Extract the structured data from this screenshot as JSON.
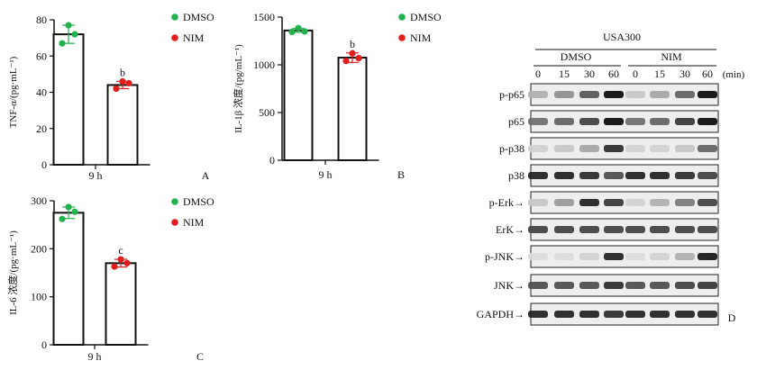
{
  "colors": {
    "dmso": "#22b14c",
    "nim": "#e11d1d",
    "axis": "#111111",
    "bar_fill": "#ffffff"
  },
  "chart_data": [
    {
      "panel": "A",
      "type": "bar",
      "ylabel": "TNF-α/(pg·mL⁻¹)",
      "xlabel": "9 h",
      "ylim": [
        0,
        80
      ],
      "yticks": [
        0,
        20,
        40,
        60,
        80
      ],
      "legend": [
        "DMSO",
        "NIM"
      ],
      "series": [
        {
          "name": "DMSO",
          "value": 72,
          "error": 5,
          "points": [
            77,
            67,
            72
          ]
        },
        {
          "name": "NIM",
          "value": 44,
          "error": 2,
          "points": [
            46,
            42,
            45
          ],
          "sig": "b"
        }
      ]
    },
    {
      "panel": "B",
      "type": "bar",
      "ylabel": "IL-1β 浓度/(pg/mL⁻¹)",
      "xlabel": "9 h",
      "ylim": [
        0,
        1500
      ],
      "yticks": [
        0,
        500,
        1000,
        1500
      ],
      "legend": [
        "DMSO",
        "NIM"
      ],
      "series": [
        {
          "name": "DMSO",
          "value": 1360,
          "error": 20,
          "points": [
            1385,
            1345,
            1350
          ]
        },
        {
          "name": "NIM",
          "value": 1075,
          "error": 50,
          "points": [
            1120,
            1040,
            1070
          ],
          "sig": "b"
        }
      ]
    },
    {
      "panel": "C",
      "type": "bar",
      "ylabel": "IL-6 浓度/(pg·mL⁻¹)",
      "xlabel": "9 h",
      "ylim": [
        0,
        300
      ],
      "yticks": [
        0,
        100,
        200,
        300
      ],
      "legend": [
        "DMSO",
        "NIM"
      ],
      "series": [
        {
          "name": "DMSO",
          "value": 275,
          "error": 12,
          "points": [
            287,
            262,
            277
          ]
        },
        {
          "name": "NIM",
          "value": 170,
          "error": 8,
          "points": [
            178,
            163,
            170
          ],
          "sig": "c"
        }
      ]
    }
  ],
  "blot": {
    "panel": "D",
    "treatment": "USA300",
    "groups": [
      "DMSO",
      "NIM"
    ],
    "time_unit": "(min)",
    "times": [
      "0",
      "15",
      "30",
      "60",
      "0",
      "15",
      "30",
      "60"
    ],
    "rows": [
      {
        "label": "p-p65",
        "intensity": [
          0.25,
          0.4,
          0.65,
          1.0,
          0.15,
          0.3,
          0.6,
          1.0
        ]
      },
      {
        "label": "p65",
        "intensity": [
          0.55,
          0.6,
          0.75,
          1.0,
          0.55,
          0.6,
          0.8,
          1.0
        ]
      },
      {
        "label": "p-p38",
        "intensity": [
          0.1,
          0.15,
          0.3,
          0.85,
          0.1,
          0.1,
          0.15,
          0.6
        ]
      },
      {
        "label": "p38",
        "intensity": [
          0.9,
          0.9,
          0.85,
          0.7,
          0.9,
          0.9,
          0.85,
          0.75
        ]
      },
      {
        "label": "p-Erk→",
        "intensity": [
          0.15,
          0.35,
          0.9,
          0.8,
          0.1,
          0.25,
          0.5,
          0.75
        ]
      },
      {
        "label": "ErK→",
        "intensity": [
          0.75,
          0.75,
          0.75,
          0.75,
          0.75,
          0.75,
          0.75,
          0.75
        ]
      },
      {
        "label": "p-JNK→",
        "intensity": [
          0.05,
          0.05,
          0.1,
          0.9,
          0.05,
          0.1,
          0.25,
          0.95
        ]
      },
      {
        "label": "JNK→",
        "intensity": [
          0.7,
          0.7,
          0.7,
          0.85,
          0.7,
          0.7,
          0.75,
          0.8
        ]
      },
      {
        "label": "GAPDH→",
        "intensity": [
          0.9,
          0.9,
          0.9,
          0.85,
          0.9,
          0.9,
          0.9,
          0.9
        ]
      }
    ]
  }
}
